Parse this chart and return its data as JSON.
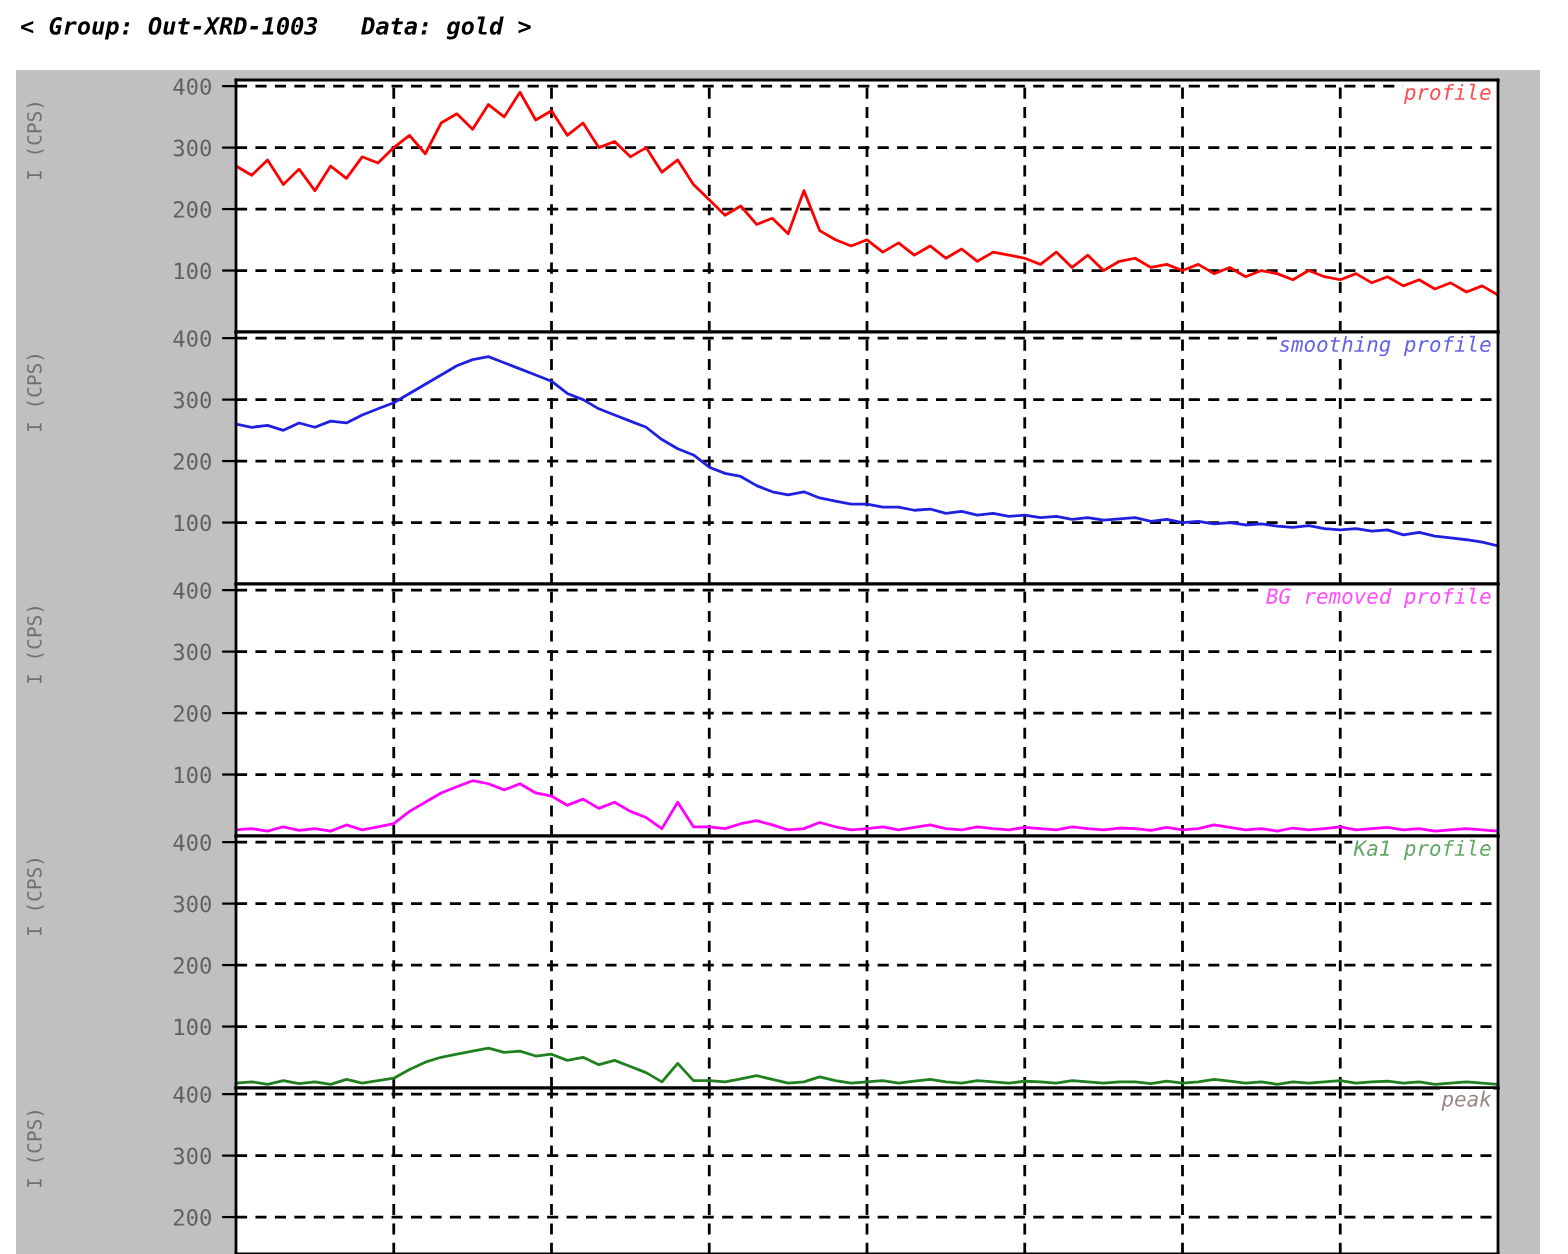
{
  "chart_data": [
    {
      "type": "line",
      "title": "< Group: Out-XRD-1003   Data: gold >",
      "ylabel": "I (CPS)",
      "categories": [
        null,
        null,
        null,
        null,
        null,
        null,
        null,
        null,
        null,
        null,
        null,
        null,
        null,
        null,
        null,
        null,
        null,
        null,
        null,
        null,
        null,
        null,
        null,
        null,
        null,
        null,
        null,
        null,
        null,
        null,
        null,
        null,
        null,
        null,
        null,
        null,
        null,
        null,
        null,
        null,
        null,
        null,
        null,
        null,
        null,
        null,
        null,
        null,
        null,
        null,
        null,
        null,
        null,
        null,
        null,
        null,
        null,
        null,
        null,
        null,
        null,
        null,
        null,
        null,
        null,
        null,
        null,
        null,
        null,
        null,
        null,
        null,
        null,
        null,
        null,
        null,
        null,
        null,
        null,
        null,
        null
      ],
      "ylim": [
        0,
        410
      ],
      "yticks": [
        100,
        200,
        300,
        400
      ],
      "grid": true,
      "tick_labels": "y",
      "series": [
        {
          "name": "profile",
          "color": "#ff0000",
          "values": [
            270,
            255,
            280,
            240,
            265,
            230,
            270,
            250,
            285,
            275,
            300,
            320,
            290,
            340,
            355,
            330,
            370,
            350,
            390,
            345,
            360,
            320,
            340,
            300,
            310,
            285,
            300,
            260,
            280,
            240,
            215,
            190,
            205,
            175,
            185,
            160,
            230,
            165,
            150,
            140,
            150,
            130,
            145,
            125,
            140,
            120,
            135,
            115,
            130,
            125,
            120,
            110,
            130,
            105,
            125,
            100,
            115,
            120,
            105,
            110,
            100,
            110,
            95,
            105,
            90,
            100,
            95,
            85,
            100,
            90,
            85,
            95,
            80,
            90,
            75,
            85,
            70,
            80,
            65,
            75,
            60
          ]
        }
      ]
    },
    {
      "type": "line",
      "ylabel": "I (CPS)",
      "categories": [
        null,
        null,
        null,
        null,
        null,
        null,
        null,
        null,
        null,
        null,
        null,
        null,
        null,
        null,
        null,
        null,
        null,
        null,
        null,
        null,
        null,
        null,
        null,
        null,
        null,
        null,
        null,
        null,
        null,
        null,
        null,
        null,
        null,
        null,
        null,
        null,
        null,
        null,
        null,
        null,
        null,
        null,
        null,
        null,
        null,
        null,
        null,
        null,
        null,
        null,
        null,
        null,
        null,
        null,
        null,
        null,
        null,
        null,
        null,
        null,
        null,
        null,
        null,
        null,
        null,
        null,
        null,
        null,
        null,
        null,
        null,
        null,
        null,
        null,
        null,
        null,
        null,
        null,
        null,
        null,
        null
      ],
      "ylim": [
        0,
        410
      ],
      "yticks": [
        100,
        200,
        300,
        400
      ],
      "grid": true,
      "tick_labels": "y",
      "series": [
        {
          "name": "smoothing profile",
          "color": "#2020e0",
          "values": [
            260,
            255,
            258,
            250,
            262,
            255,
            265,
            262,
            275,
            285,
            295,
            310,
            325,
            340,
            355,
            365,
            370,
            360,
            350,
            340,
            330,
            310,
            300,
            285,
            275,
            265,
            255,
            235,
            220,
            210,
            190,
            180,
            175,
            160,
            150,
            145,
            150,
            140,
            135,
            130,
            130,
            125,
            125,
            120,
            122,
            115,
            118,
            112,
            115,
            110,
            112,
            108,
            110,
            105,
            108,
            104,
            106,
            108,
            102,
            105,
            100,
            102,
            98,
            100,
            96,
            98,
            94,
            92,
            95,
            90,
            88,
            90,
            86,
            88,
            80,
            84,
            78,
            75,
            72,
            68,
            62
          ]
        }
      ]
    },
    {
      "type": "line",
      "ylabel": "I (CPS)",
      "categories": [
        null,
        null,
        null,
        null,
        null,
        null,
        null,
        null,
        null,
        null,
        null,
        null,
        null,
        null,
        null,
        null,
        null,
        null,
        null,
        null,
        null,
        null,
        null,
        null,
        null,
        null,
        null,
        null,
        null,
        null,
        null,
        null,
        null,
        null,
        null,
        null,
        null,
        null,
        null,
        null,
        null,
        null,
        null,
        null,
        null,
        null,
        null,
        null,
        null,
        null,
        null,
        null,
        null,
        null,
        null,
        null,
        null,
        null,
        null,
        null,
        null,
        null,
        null,
        null,
        null,
        null,
        null,
        null,
        null,
        null,
        null,
        null,
        null,
        null,
        null,
        null,
        null,
        null,
        null,
        null,
        null
      ],
      "ylim": [
        0,
        410
      ],
      "yticks": [
        100,
        200,
        300,
        400
      ],
      "grid": true,
      "tick_labels": "y",
      "series": [
        {
          "name": "BG removed profile",
          "color": "#ff00ff",
          "values": [
            10,
            12,
            8,
            15,
            9,
            12,
            8,
            18,
            10,
            15,
            20,
            40,
            55,
            70,
            80,
            90,
            85,
            75,
            85,
            70,
            65,
            50,
            60,
            45,
            55,
            40,
            30,
            12,
            55,
            15,
            15,
            12,
            20,
            25,
            18,
            10,
            12,
            22,
            15,
            10,
            12,
            15,
            10,
            14,
            18,
            12,
            10,
            15,
            12,
            10,
            14,
            12,
            10,
            15,
            12,
            10,
            13,
            12,
            9,
            14,
            10,
            12,
            18,
            14,
            10,
            12,
            8,
            13,
            10,
            12,
            15,
            10,
            12,
            14,
            10,
            12,
            8,
            10,
            12,
            10,
            8
          ]
        }
      ]
    },
    {
      "type": "line",
      "ylabel": "I (CPS)",
      "categories": [
        null,
        null,
        null,
        null,
        null,
        null,
        null,
        null,
        null,
        null,
        null,
        null,
        null,
        null,
        null,
        null,
        null,
        null,
        null,
        null,
        null,
        null,
        null,
        null,
        null,
        null,
        null,
        null,
        null,
        null,
        null,
        null,
        null,
        null,
        null,
        null,
        null,
        null,
        null,
        null,
        null,
        null,
        null,
        null,
        null,
        null,
        null,
        null,
        null,
        null,
        null,
        null,
        null,
        null,
        null,
        null,
        null,
        null,
        null,
        null,
        null,
        null,
        null,
        null,
        null,
        null,
        null,
        null,
        null,
        null,
        null,
        null,
        null,
        null,
        null,
        null,
        null,
        null,
        null,
        null,
        null
      ],
      "ylim": [
        0,
        410
      ],
      "yticks": [
        100,
        200,
        300,
        400
      ],
      "grid": true,
      "tick_labels": "y",
      "series": [
        {
          "name": "Ka1 profile",
          "color": "#208020",
          "values": [
            8,
            10,
            6,
            12,
            7,
            10,
            6,
            14,
            8,
            12,
            16,
            30,
            42,
            50,
            55,
            60,
            65,
            58,
            60,
            52,
            55,
            45,
            50,
            38,
            45,
            35,
            25,
            10,
            40,
            12,
            12,
            10,
            15,
            20,
            14,
            8,
            10,
            18,
            12,
            8,
            10,
            12,
            8,
            11,
            14,
            10,
            8,
            12,
            10,
            8,
            11,
            10,
            8,
            12,
            10,
            8,
            10,
            10,
            7,
            11,
            8,
            10,
            14,
            11,
            8,
            10,
            6,
            10,
            8,
            10,
            12,
            8,
            10,
            11,
            8,
            10,
            6,
            8,
            10,
            8,
            6
          ]
        }
      ]
    },
    {
      "type": "line",
      "ylabel": "I (CPS)",
      "categories": [
        null,
        null,
        null,
        null,
        null,
        null,
        null,
        null,
        null,
        null,
        null,
        null,
        null,
        null,
        null,
        null,
        null,
        null,
        null,
        null,
        null,
        null,
        null,
        null,
        null,
        null,
        null,
        null,
        null,
        null,
        null,
        null,
        null,
        null,
        null,
        null,
        null,
        null,
        null,
        null,
        null,
        null,
        null,
        null,
        null,
        null,
        null,
        null,
        null,
        null,
        null,
        null,
        null,
        null,
        null,
        null,
        null,
        null,
        null,
        null,
        null,
        null,
        null,
        null,
        null,
        null,
        null,
        null,
        null,
        null,
        null,
        null,
        null,
        null,
        null,
        null,
        null,
        null,
        null,
        null,
        null
      ],
      "ylim": [
        140,
        410
      ],
      "yticks": [
        200,
        300,
        400
      ],
      "grid": true,
      "tick_labels": "y",
      "series": [
        {
          "name": "peak",
          "color": "#705050",
          "values": [
            null,
            null,
            null,
            null,
            null,
            null,
            null,
            null,
            null,
            null,
            null,
            null,
            null,
            null,
            null,
            null,
            null,
            null,
            null,
            null,
            null,
            null,
            null,
            null,
            null,
            null,
            null,
            null,
            null,
            null,
            null,
            null,
            null,
            null,
            null,
            null,
            null,
            null,
            null,
            null,
            null,
            null,
            null,
            null,
            null,
            null,
            null,
            null,
            null,
            null,
            null,
            null,
            null,
            null,
            null,
            null,
            null,
            null,
            null,
            null,
            null,
            null,
            null,
            null,
            null,
            null,
            null,
            null,
            null,
            null,
            null,
            null,
            null,
            null,
            null,
            null,
            null,
            null,
            null,
            null,
            null
          ]
        }
      ]
    }
  ]
}
